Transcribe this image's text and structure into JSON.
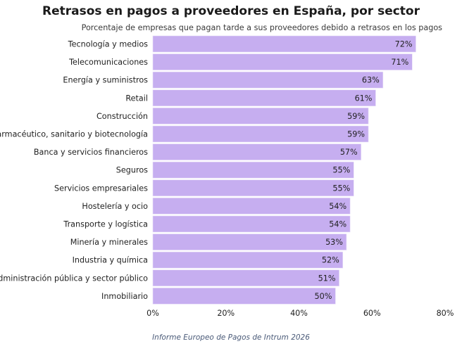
{
  "chart_data": {
    "type": "bar",
    "orientation": "horizontal",
    "title": "Retrasos en pagos a proveedores en España, por sector",
    "subtitle": "Porcentaje de empresas que pagan tarde a sus proveedores debido a retrasos en los pagos",
    "categories": [
      "Tecnología y medios",
      "Telecomunicaciones",
      "Energía y suministros",
      "Retail",
      "Construcción",
      "Farmacéutico, sanitario y biotecnología",
      "Banca y servicios financieros",
      "Seguros",
      "Servicios empresariales",
      "Hostelería y ocio",
      "Transporte y logística",
      "Minería y minerales",
      "Industria y química",
      "Administración pública y sector público",
      "Inmobiliario"
    ],
    "values": [
      72,
      71,
      63,
      61,
      59,
      59,
      57,
      55,
      55,
      54,
      54,
      53,
      52,
      51,
      50
    ],
    "data_labels": [
      "72%",
      "71%",
      "63%",
      "61%",
      "59%",
      "59%",
      "57%",
      "55%",
      "55%",
      "54%",
      "54%",
      "53%",
      "52%",
      "51%",
      "50%"
    ],
    "xlim": [
      0,
      80
    ],
    "xticks": [
      0,
      20,
      40,
      60,
      80
    ],
    "xtick_labels": [
      "0%",
      "20%",
      "40%",
      "60%",
      "80%"
    ],
    "xlabel": "",
    "ylabel": "",
    "grid": false,
    "bar_color": "#c6aef0",
    "bar_edge_color": "#e9e0f8"
  },
  "source": "Informe Europeo de Pagos de Intrum 2026"
}
